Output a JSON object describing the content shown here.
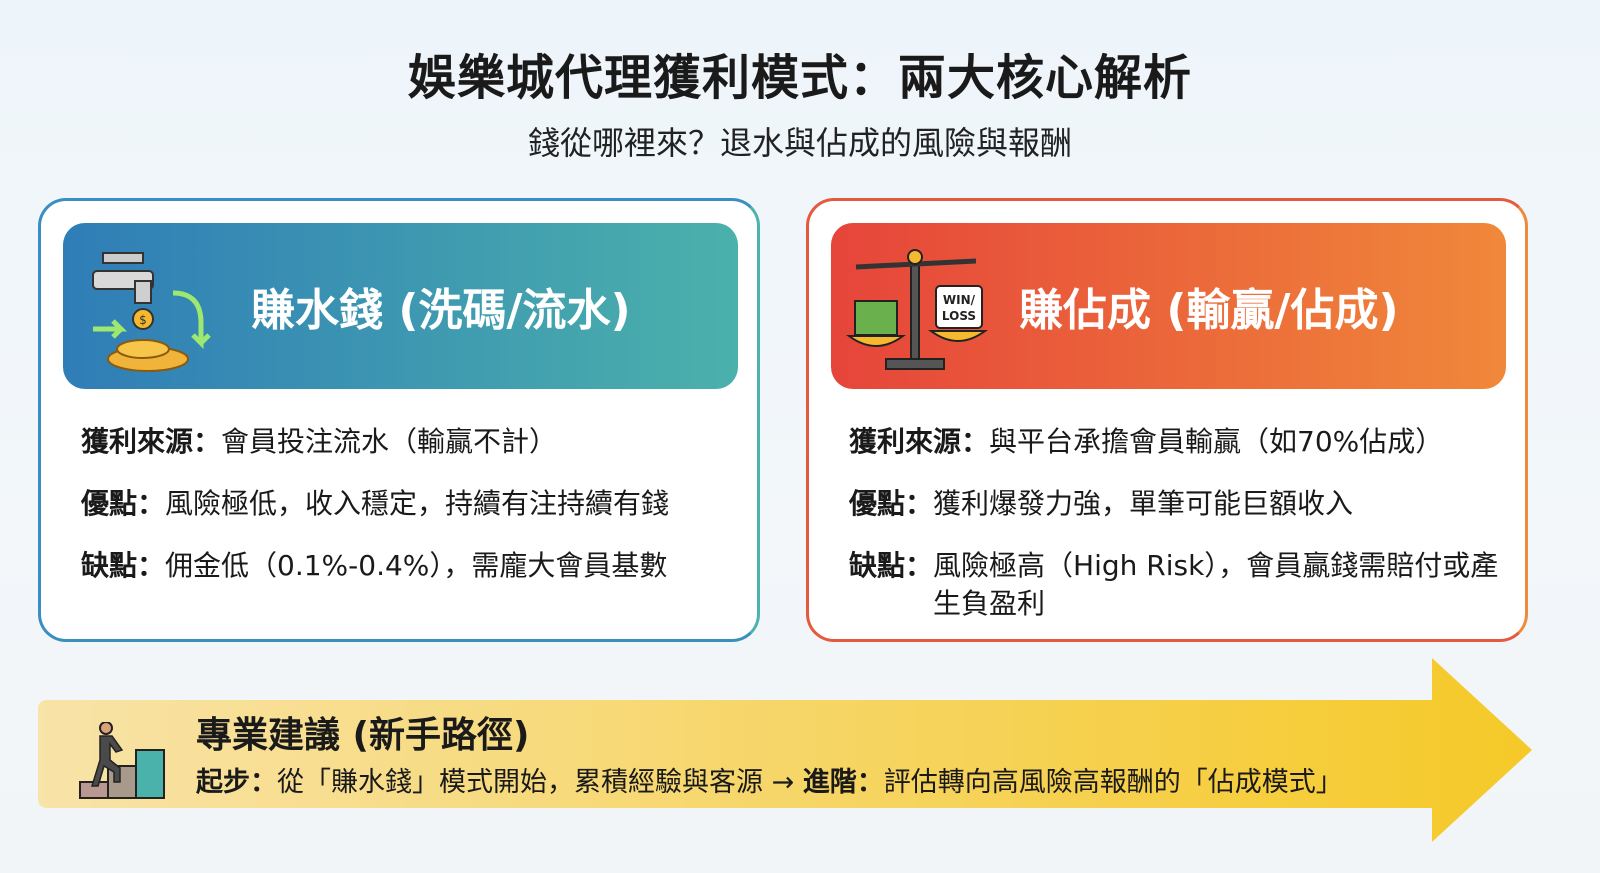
{
  "title": "娛樂城代理獲利模式：兩大核心解析",
  "subtitle": "錢從哪裡來？退水與佔成的風險與報酬",
  "left_card": {
    "title": "賺水錢 (洗碼/流水)",
    "icon": "faucet-coins-icon",
    "rows": [
      {
        "label": "獲利來源：",
        "text": "會員投注流水（輸贏不計）"
      },
      {
        "label": "優點：",
        "text": "風險極低，收入穩定，持續有注持續有錢"
      },
      {
        "label": "缺點：",
        "text": "佣金低（0.1%-0.4%），需龐大會員基數"
      }
    ]
  },
  "right_card": {
    "title": "賺佔成 (輸贏/佔成)",
    "icon": "balance-scale-icon",
    "scale_label": "WIN/ LOSS",
    "rows": [
      {
        "label": "獲利來源：",
        "text": "與平台承擔會員輸贏（如70%佔成）"
      },
      {
        "label": "優點：",
        "text": "獲利爆發力強，單筆可能巨額收入"
      },
      {
        "label": "缺點：",
        "text": "風險極高（High Risk），會員贏錢需賠付或產生負盈利"
      }
    ]
  },
  "advice": {
    "icon": "person-climbing-stairs-icon",
    "title": "專業建議 (新手路徑)",
    "start_label": "起步：",
    "start_text": "從「賺水錢」模式開始，累積經驗與客源 → ",
    "advance_label": "進階：",
    "advance_text": "評估轉向高風險高報酬的「佔成模式」"
  },
  "colors": {
    "water_accent": "#2f7db7",
    "teal": "#4bb1ab",
    "risk_red": "#e6453a",
    "risk_orange": "#f0883a",
    "arrow_yellow": "#f5c928"
  }
}
